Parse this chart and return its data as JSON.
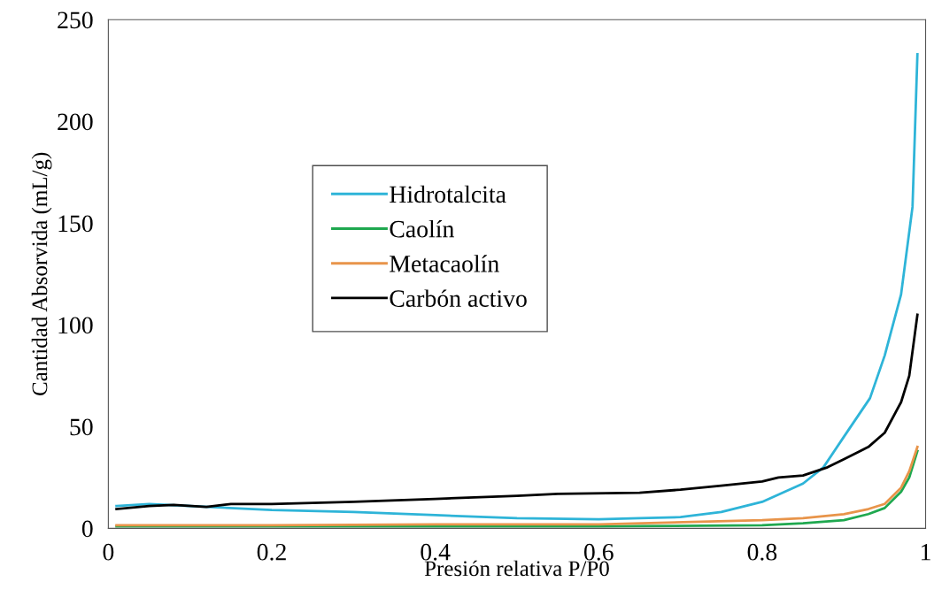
{
  "chart_data": {
    "type": "line",
    "xlabel": "Presión relativa P/P0",
    "ylabel": "Cantidad Absorvida (mL/g)",
    "xlim": [
      0,
      1
    ],
    "xticks": [
      0,
      0.2,
      0.4,
      0.6,
      0.8,
      1
    ],
    "ylim": [
      0,
      250
    ],
    "yticks": [
      0,
      50,
      100,
      150,
      200,
      250
    ],
    "grid": false,
    "legend": "left",
    "marker": "none",
    "line_style": "solid",
    "series": [
      {
        "name": "Hidrotalcita",
        "color": "#2eb4d8",
        "x": [
          0.01,
          0.05,
          0.1,
          0.2,
          0.3,
          0.4,
          0.5,
          0.6,
          0.65,
          0.7,
          0.75,
          0.8,
          0.85,
          0.875,
          0.9,
          0.932,
          0.95,
          0.97,
          0.984,
          0.99
        ],
        "values": [
          11,
          12,
          11,
          9,
          8,
          6.5,
          5,
          4.5,
          5,
          5.5,
          8,
          13,
          22,
          30,
          45,
          64,
          85,
          115,
          158,
          233
        ]
      },
      {
        "name": "Caolín",
        "color": "#1fa84f",
        "x": [
          0.01,
          0.2,
          0.4,
          0.6,
          0.8,
          0.85,
          0.9,
          0.93,
          0.95,
          0.97,
          0.98,
          0.99
        ],
        "values": [
          1,
          1,
          1,
          1,
          1.5,
          2.5,
          4,
          7,
          10,
          18,
          25,
          38
        ]
      },
      {
        "name": "Metacaolín",
        "color": "#e8944a",
        "x": [
          0.01,
          0.2,
          0.4,
          0.6,
          0.8,
          0.85,
          0.9,
          0.93,
          0.95,
          0.97,
          0.98,
          0.99
        ],
        "values": [
          1.5,
          1.5,
          2,
          2,
          4,
          5,
          7,
          9.5,
          12,
          20,
          28,
          40
        ]
      },
      {
        "name": "Carbón activo",
        "color": "#000000",
        "x": [
          0.01,
          0.05,
          0.08,
          0.12,
          0.15,
          0.2,
          0.3,
          0.4,
          0.5,
          0.55,
          0.65,
          0.7,
          0.75,
          0.8,
          0.82,
          0.85,
          0.88,
          0.9,
          0.93,
          0.95,
          0.97,
          0.98,
          0.99
        ],
        "values": [
          9.5,
          11,
          11.5,
          10.5,
          12,
          12,
          13,
          14.5,
          16,
          17,
          17.5,
          19,
          21,
          23,
          25,
          26,
          30,
          34,
          40,
          47,
          62,
          75,
          105
        ]
      }
    ]
  }
}
